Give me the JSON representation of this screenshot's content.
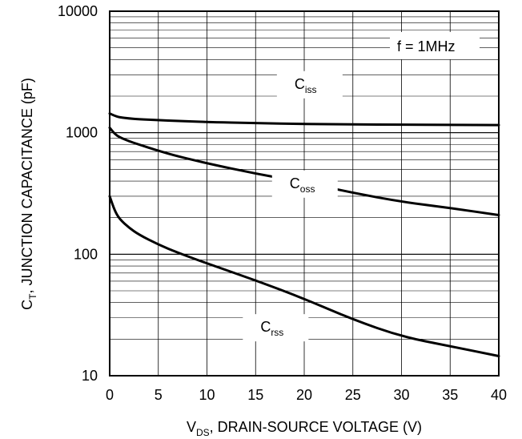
{
  "chart_data": {
    "type": "line",
    "title": "",
    "xlabel": {
      "main": "V",
      "sub": "DS",
      "rest": ", DRAIN-SOURCE VOLTAGE (V)"
    },
    "ylabel": {
      "main": "C",
      "sub": "T",
      "rest": ", JUNCTION CAPACITANCE (pF)"
    },
    "xlim": [
      0,
      40
    ],
    "ylim": [
      10,
      10000
    ],
    "yscale": "log",
    "grid": true,
    "x_ticks": [
      "0",
      "5",
      "10",
      "15",
      "20",
      "25",
      "30",
      "35",
      "40"
    ],
    "y_ticks": [
      "10",
      "100",
      "1000",
      "10000"
    ],
    "annotation": "f = 1MHz",
    "series": [
      {
        "name": "iss",
        "label_main": "C",
        "label_sub": "iss",
        "x": [
          0,
          0.5,
          1,
          2,
          3,
          5,
          7,
          10,
          15,
          20,
          25,
          30,
          35,
          40
        ],
        "y": [
          1440,
          1380,
          1340,
          1310,
          1290,
          1270,
          1250,
          1225,
          1200,
          1180,
          1170,
          1165,
          1160,
          1155
        ]
      },
      {
        "name": "oss",
        "label_main": "C",
        "label_sub": "oss",
        "x": [
          0,
          0.5,
          1,
          2,
          3,
          5,
          7,
          10,
          15,
          20,
          25,
          30,
          35,
          40
        ],
        "y": [
          1100,
          980,
          920,
          850,
          800,
          710,
          640,
          560,
          460,
          390,
          320,
          270,
          240,
          210
        ]
      },
      {
        "name": "rss",
        "label_main": "C",
        "label_sub": "rss",
        "x": [
          0,
          0.5,
          1,
          2,
          3,
          5,
          7,
          10,
          15,
          20,
          25,
          30,
          35,
          40
        ],
        "y": [
          300,
          230,
          195,
          165,
          145,
          120,
          103,
          84,
          61,
          43,
          29,
          21,
          17.5,
          14.5
        ]
      }
    ]
  }
}
